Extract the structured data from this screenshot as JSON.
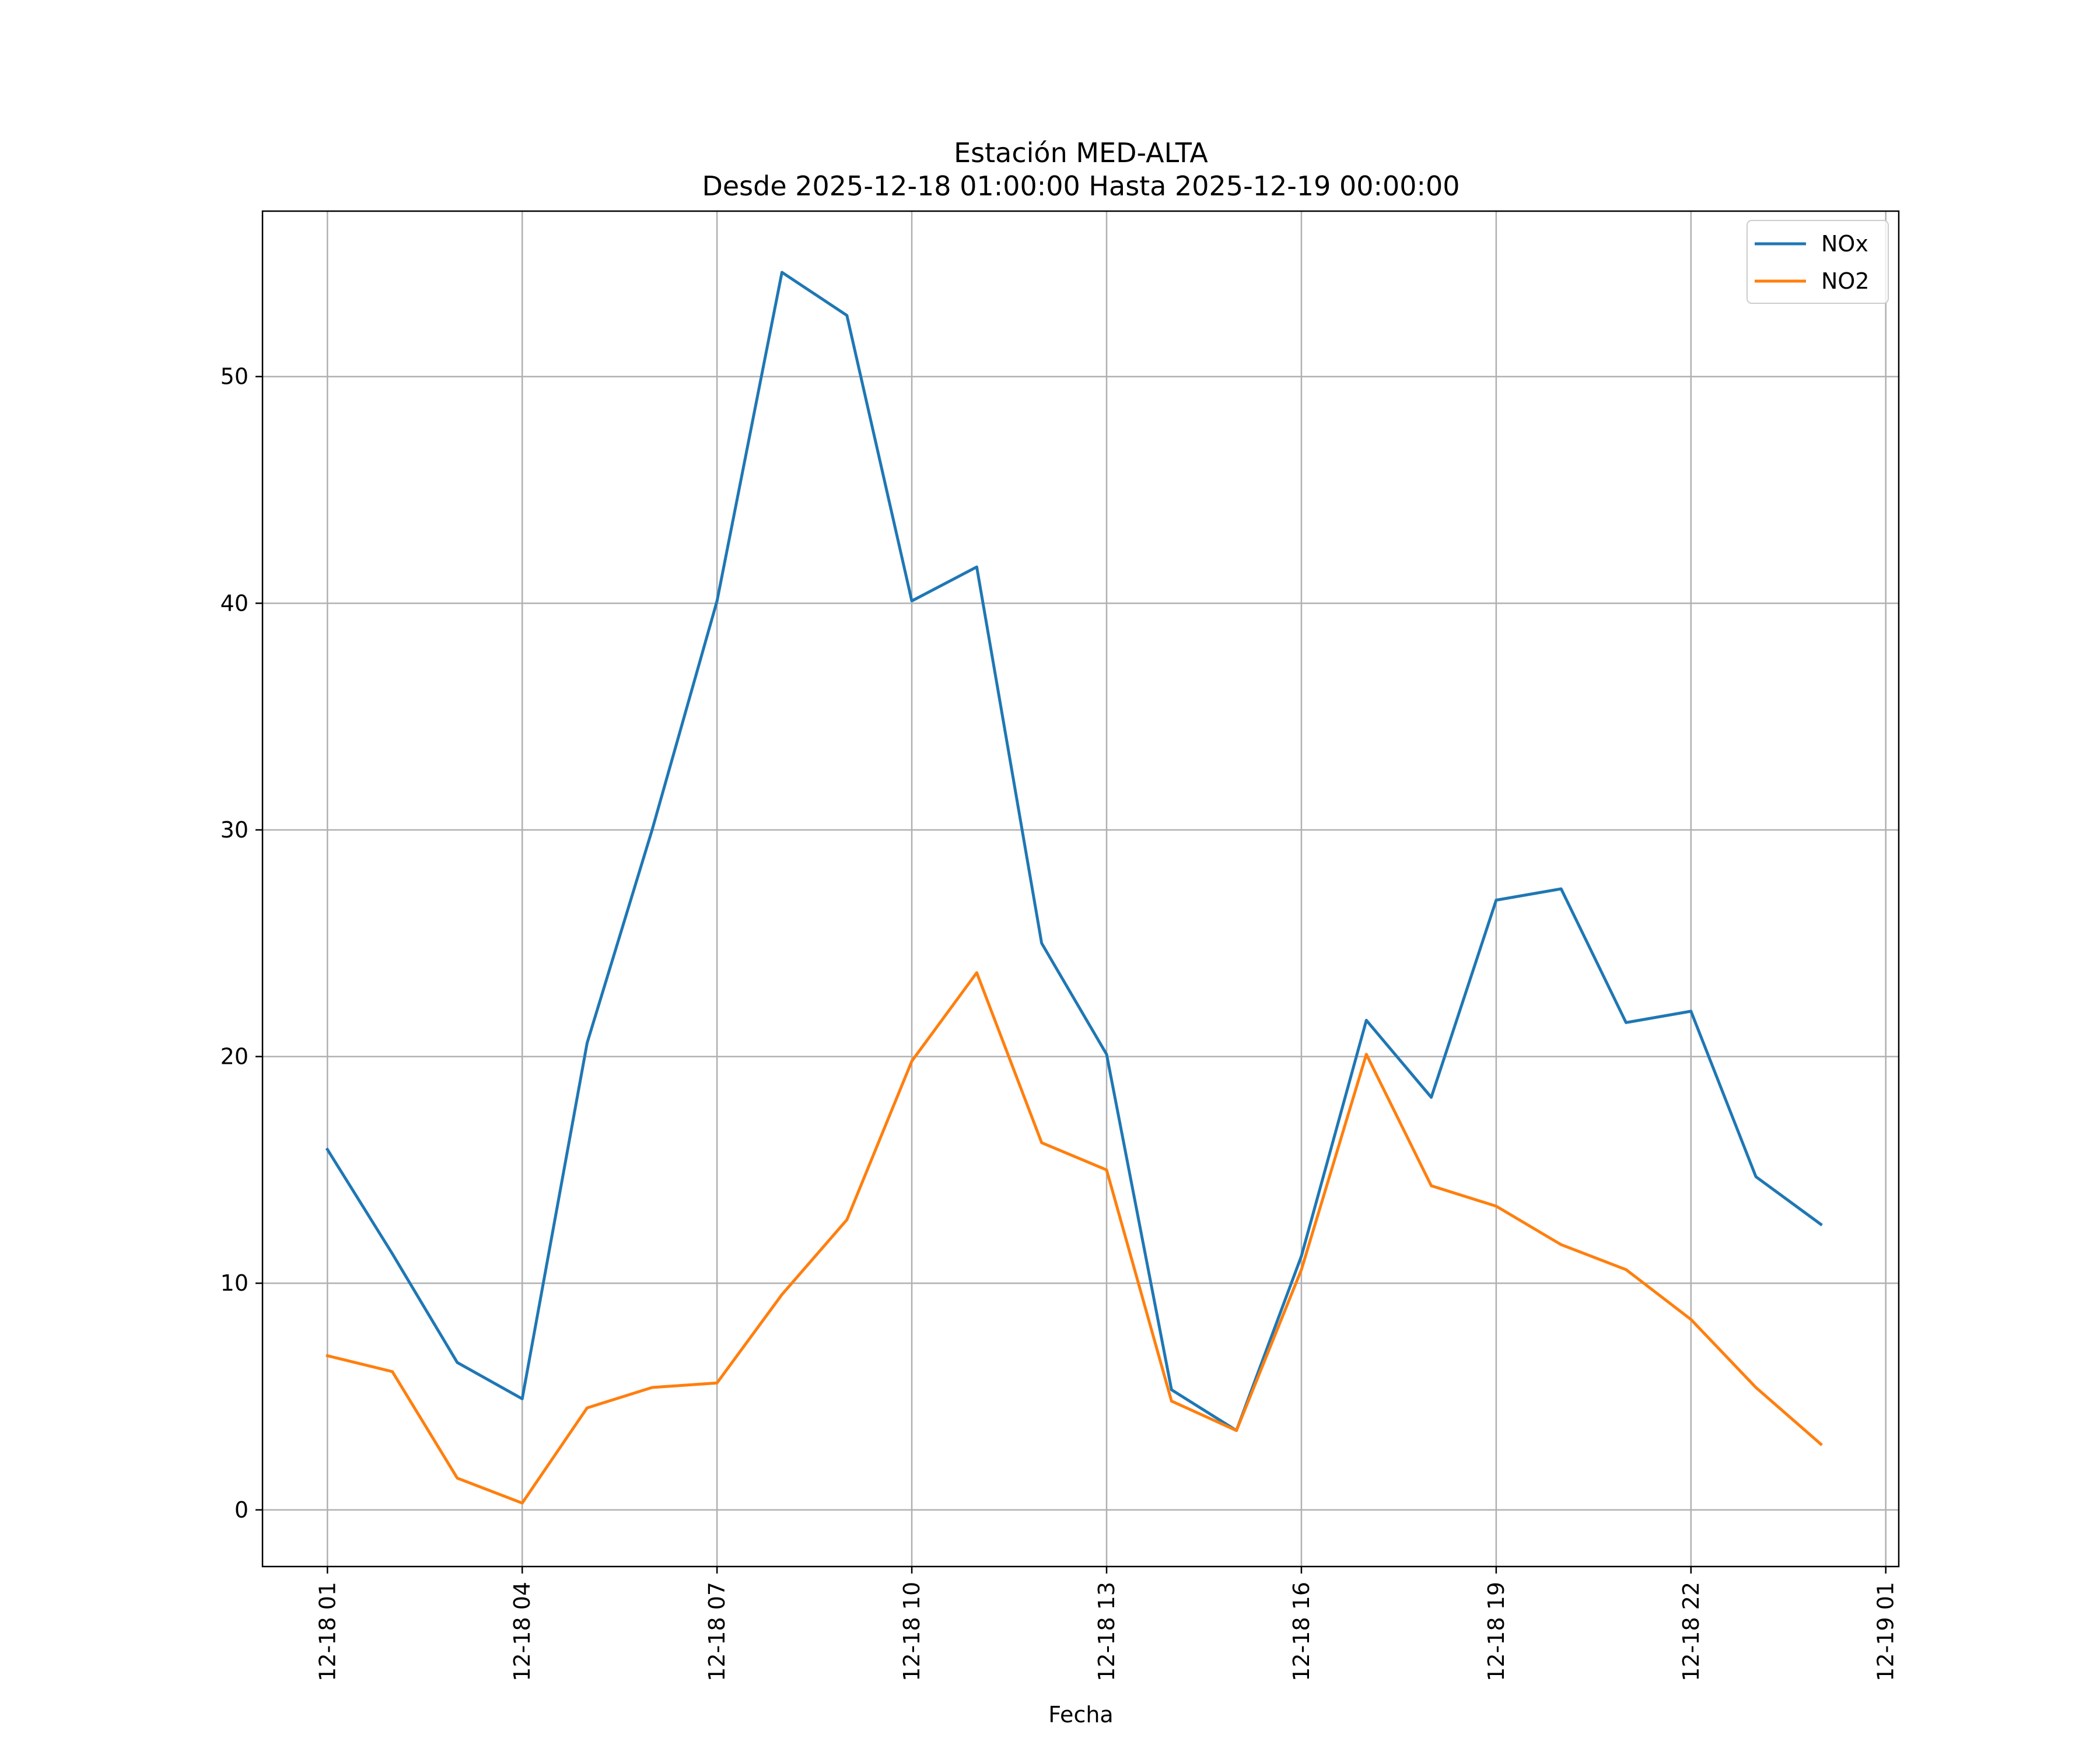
{
  "chart_data": {
    "type": "line",
    "title": "Estación MED-ALTA",
    "subtitle": "Desde 2025-12-18 01:00:00 Hasta 2025-12-19 00:00:00",
    "xlabel": "Fecha",
    "ylabel": "",
    "x": [
      "2025-12-18 01:00",
      "2025-12-18 02:00",
      "2025-12-18 03:00",
      "2025-12-18 04:00",
      "2025-12-18 05:00",
      "2025-12-18 06:00",
      "2025-12-18 07:00",
      "2025-12-18 08:00",
      "2025-12-18 09:00",
      "2025-12-18 10:00",
      "2025-12-18 11:00",
      "2025-12-18 12:00",
      "2025-12-18 13:00",
      "2025-12-18 14:00",
      "2025-12-18 15:00",
      "2025-12-18 16:00",
      "2025-12-18 17:00",
      "2025-12-18 18:00",
      "2025-12-18 19:00",
      "2025-12-18 20:00",
      "2025-12-18 21:00",
      "2025-12-18 22:00",
      "2025-12-18 23:00",
      "2025-12-19 00:00"
    ],
    "xlim": [
      "2025-12-18 00:00",
      "2025-12-19 01:12"
    ],
    "ylim": [
      -2.5,
      57.3
    ],
    "xticks": [
      {
        "label": "12-18 01",
        "x": "2025-12-18 01:00"
      },
      {
        "label": "12-18 04",
        "x": "2025-12-18 04:00"
      },
      {
        "label": "12-18 07",
        "x": "2025-12-18 07:00"
      },
      {
        "label": "12-18 10",
        "x": "2025-12-18 10:00"
      },
      {
        "label": "12-18 13",
        "x": "2025-12-18 13:00"
      },
      {
        "label": "12-18 16",
        "x": "2025-12-18 16:00"
      },
      {
        "label": "12-18 19",
        "x": "2025-12-18 19:00"
      },
      {
        "label": "12-18 22",
        "x": "2025-12-18 22:00"
      },
      {
        "label": "12-19 01",
        "x": "2025-12-19 01:00"
      }
    ],
    "yticks": [
      0,
      10,
      20,
      30,
      40,
      50
    ],
    "grid": true,
    "legend_position": "top-right",
    "series": [
      {
        "name": "NOx",
        "color": "#1f77b4",
        "values": [
          15.9,
          11.3,
          6.5,
          4.9,
          20.6,
          30.0,
          40.1,
          54.6,
          52.7,
          40.1,
          41.6,
          25.0,
          20.1,
          5.3,
          3.5,
          11.2,
          21.6,
          18.2,
          26.9,
          27.4,
          21.5,
          22.0,
          14.7,
          12.6
        ]
      },
      {
        "name": "NO2",
        "color": "#ff7f0e",
        "values": [
          6.8,
          6.1,
          1.4,
          0.3,
          4.5,
          5.4,
          5.6,
          9.5,
          12.8,
          19.8,
          23.7,
          16.2,
          15.0,
          4.8,
          3.5,
          10.6,
          20.1,
          14.3,
          13.4,
          11.7,
          10.6,
          8.4,
          5.4,
          2.9
        ]
      }
    ]
  }
}
